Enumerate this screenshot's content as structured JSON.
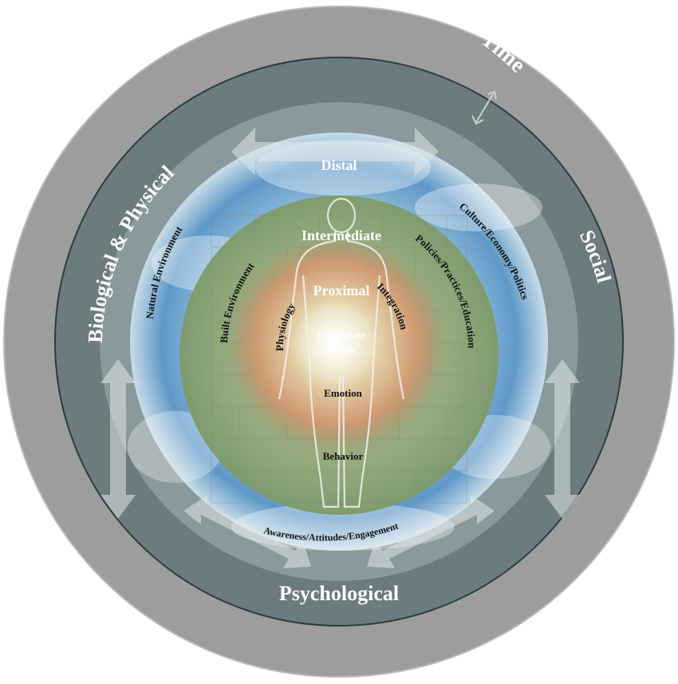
{
  "labels": {
    "time": "Time",
    "biological": "Biological & Physical",
    "social": "Social",
    "psychological": "Psychological",
    "distal": "Distal",
    "intermediate": "Intermediate",
    "proximal": "Proximal",
    "immediate": "Immediate",
    "micro": "Micro",
    "natural_environment": "Natural Environment",
    "built_environment": "Built Environment",
    "physiology": "Physiology",
    "culture": "Culture/Economy/Politics",
    "policies": "Policies/Practices/Education",
    "integration": "Integration",
    "emotion": "Emotion",
    "behavior": "Behavior",
    "awareness": "Awareness/Attitudes/Engagement"
  },
  "colors": {
    "outer_ring": "#9a9a9a",
    "dark_ring": "#6b7a7c",
    "sky_blue": "#6fa4cf",
    "green_zone": "#8fa675",
    "orange_zone": "#c99066",
    "center_glow": "#f3f1dc"
  }
}
